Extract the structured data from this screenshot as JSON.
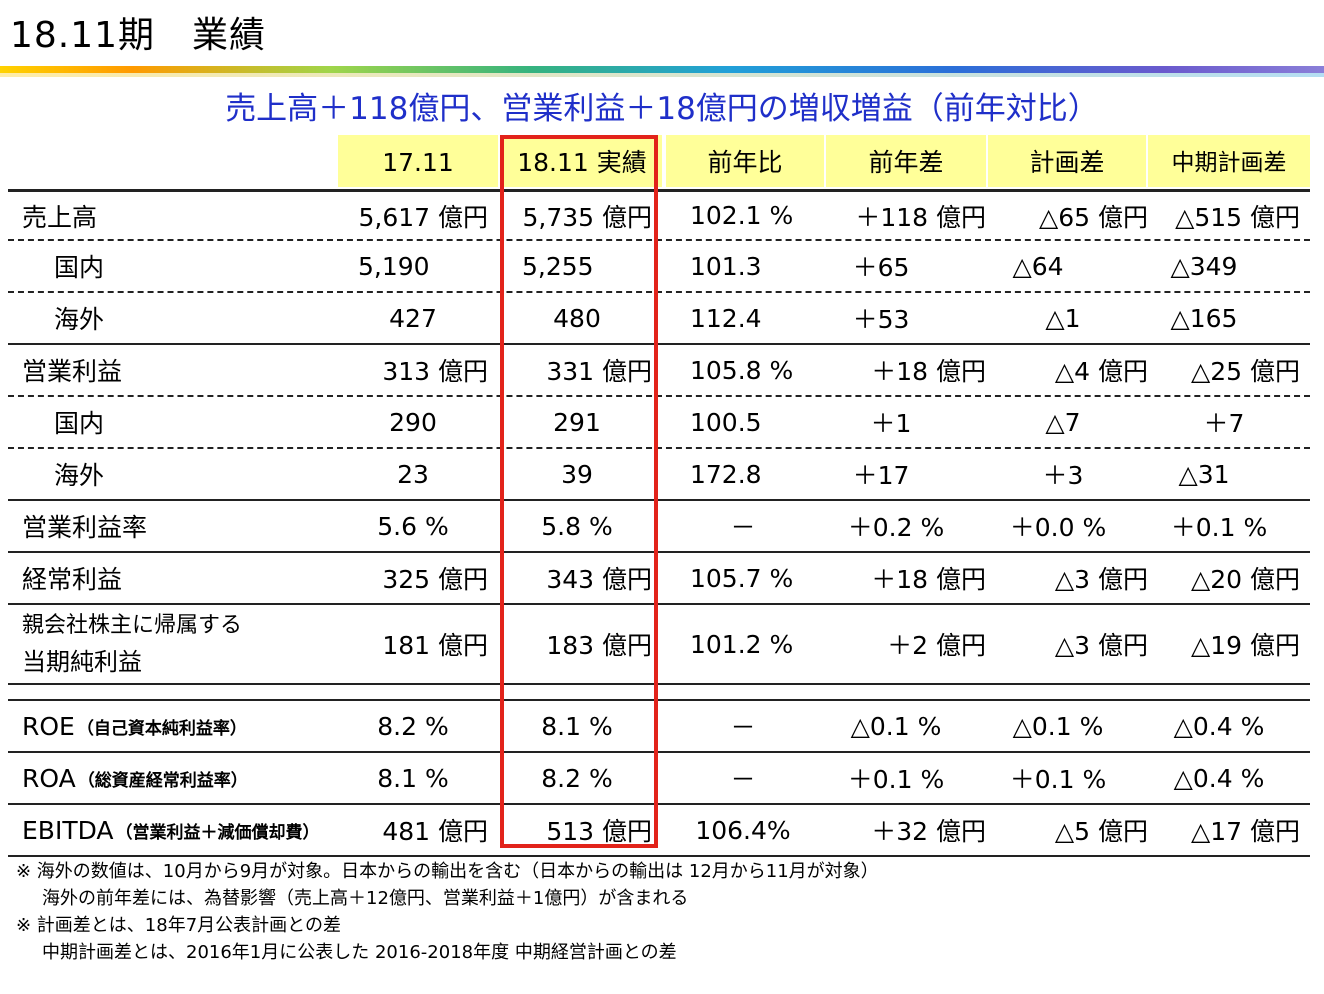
{
  "page": {
    "title": "18.11期　業績"
  },
  "headline": "売上高＋118億円、営業利益＋18億円の増収増益（前年対比）",
  "table": {
    "columns": [
      "",
      "17.11",
      "18.11 実績",
      "前年比",
      "前年差",
      "計画差",
      "中期計画差"
    ],
    "rows": [
      {
        "label": "売上高",
        "values": [
          "5,617 億円",
          "5,735 億円",
          "102.1 %",
          "＋118 億円",
          "△65 億円",
          "△515 億円"
        ]
      },
      {
        "label": "国内",
        "values": [
          "5,190",
          "5,255",
          "101.3",
          "＋65",
          "△64",
          "△349"
        ]
      },
      {
        "label": "海外",
        "values": [
          "427",
          "480",
          "112.4",
          "＋53",
          "△1",
          "△165"
        ]
      },
      {
        "label": "営業利益",
        "values": [
          "313 億円",
          "331 億円",
          "105.8 %",
          "＋18 億円",
          "△4 億円",
          "△25 億円"
        ]
      },
      {
        "label": "国内",
        "values": [
          "290",
          "291",
          "100.5",
          "＋1",
          "△7",
          "＋7"
        ]
      },
      {
        "label": "海外",
        "values": [
          "23",
          "39",
          "172.8",
          "＋17",
          "＋3",
          "△31"
        ]
      },
      {
        "label": "営業利益率",
        "values": [
          "5.6 %",
          "5.8 %",
          "－",
          "＋0.2 %",
          "＋0.0 %",
          "＋0.1 %"
        ]
      },
      {
        "label": "経常利益",
        "values": [
          "325 億円",
          "343 億円",
          "105.7 %",
          "＋18 億円",
          "△3 億円",
          "△20 億円"
        ]
      },
      {
        "label_line1": "親会社株主に帰属する",
        "label_line2": "当期純利益",
        "values": [
          "181 億円",
          "183 億円",
          "101.2 %",
          "＋2 億円",
          "△3 億円",
          "△19 億円"
        ]
      },
      {
        "label": "ROE",
        "label_small": "（自己資本純利益率）",
        "values": [
          "8.2 %",
          "8.1 %",
          "－",
          "△0.1 %",
          "△0.1 %",
          "△0.4 %"
        ]
      },
      {
        "label": "ROA",
        "label_small": "（総資産経常利益率）",
        "values": [
          "8.1 %",
          "8.2 %",
          "－",
          "＋0.1 %",
          "＋0.1 %",
          "△0.4 %"
        ]
      },
      {
        "label": "EBITDA",
        "label_small": "（営業利益＋減価償却費）",
        "values": [
          "481 億円",
          "513 億円",
          "106.4%",
          "＋32 億円",
          "△5 億円",
          "△17 億円"
        ]
      }
    ]
  },
  "notes": [
    "※ 海外の数値は、10月から9月が対象。日本からの輸出を含む（日本からの輸出は 12月から11月が対象）",
    "海外の前年差には、為替影響（売上高＋12億円、営業利益＋1億円）が含まれる",
    "※ 計画差とは、18年7月公表計画との差",
    "中期計画差とは、2016年1月に公表した 2016-2018年度 中期経営計画との差"
  ],
  "colors": {
    "headline": "#1f2fc9",
    "header_bg": "#ffff99",
    "highlight_box": "#e2231a"
  }
}
